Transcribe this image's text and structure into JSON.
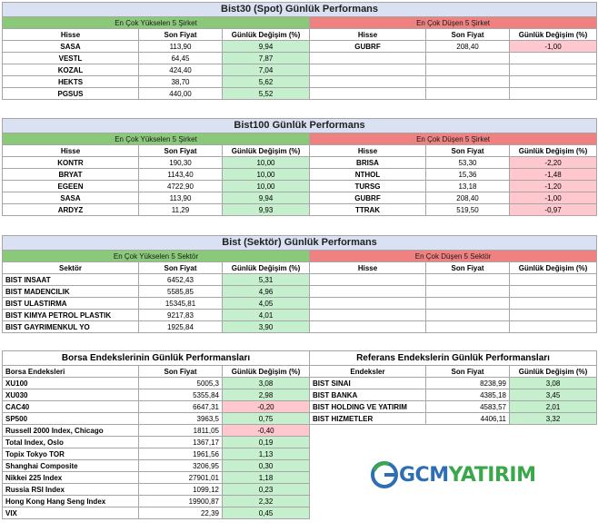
{
  "bist30": {
    "title": "Bist30 (Spot) Günlük Performans",
    "up_label": "En Çok Yükselen 5 Şirket",
    "down_label": "En Çok Düşen 5 Şirket",
    "col_hisse": "Hisse",
    "col_fiyat": "Son Fiyat",
    "col_degisim": "Günlük Değişim (%)",
    "up": [
      {
        "name": "SASA",
        "price": "113,90",
        "change": "9,94"
      },
      {
        "name": "VESTL",
        "price": "64,45",
        "change": "7,87"
      },
      {
        "name": "KOZAL",
        "price": "424,40",
        "change": "7,04"
      },
      {
        "name": "HEKTS",
        "price": "38,70",
        "change": "5,62"
      },
      {
        "name": "PGSUS",
        "price": "440,00",
        "change": "5,52"
      }
    ],
    "down": [
      {
        "name": "GUBRF",
        "price": "208,40",
        "change": "-1,00"
      }
    ]
  },
  "bist100": {
    "title": "Bist100 Günlük Performans",
    "up_label": "En Çok Yükselen 5 Şirket",
    "down_label": "En Çok Düşen 5 Şirket",
    "col_hisse": "Hisse",
    "col_fiyat": "Son Fiyat",
    "col_degisim": "Günlük Değişim (%)",
    "up": [
      {
        "name": "KONTR",
        "price": "190,30",
        "change": "10,00"
      },
      {
        "name": "BRYAT",
        "price": "1143,40",
        "change": "10,00"
      },
      {
        "name": "EGEEN",
        "price": "4722,90",
        "change": "10,00"
      },
      {
        "name": "SASA",
        "price": "113,90",
        "change": "9,94"
      },
      {
        "name": "ARDYZ",
        "price": "11,29",
        "change": "9,93"
      }
    ],
    "down": [
      {
        "name": "BRISA",
        "price": "53,30",
        "change": "-2,20"
      },
      {
        "name": "NTHOL",
        "price": "15,36",
        "change": "-1,48"
      },
      {
        "name": "TURSG",
        "price": "13,18",
        "change": "-1,20"
      },
      {
        "name": "GUBRF",
        "price": "208,40",
        "change": "-1,00"
      },
      {
        "name": "TTRAK",
        "price": "519,50",
        "change": "-0,97"
      }
    ]
  },
  "sektor": {
    "title": "Bist (Sektör) Günlük Performans",
    "up_label": "En Çok Yükselen 5 Sektör",
    "down_label": "En Çok Düşen 5 Sektör",
    "col_sektor": "Sektör",
    "col_hisse": "Hisse",
    "col_fiyat": "Son Fiyat",
    "col_degisim": "Günlük Değişim (%)",
    "up": [
      {
        "name": "BIST INSAAT",
        "price": "6452,43",
        "change": "5,31"
      },
      {
        "name": "BIST MADENCILIK",
        "price": "5585,85",
        "change": "4,96"
      },
      {
        "name": "BIST ULASTIRMA",
        "price": "15345,81",
        "change": "4,05"
      },
      {
        "name": "BIST KIMYA PETROL PLASTIK",
        "price": "9217,83",
        "change": "4,01"
      },
      {
        "name": "BIST GAYRIMENKUL YO",
        "price": "1925,84",
        "change": "3,90"
      }
    ]
  },
  "borsa": {
    "title": "Borsa Endekslerinin Günlük Performansları",
    "col_name": "Borsa Endeksleri",
    "col_fiyat": "Son Fiyat",
    "col_degisim": "Günlük Değişim (%)",
    "rows": [
      {
        "name": "XU100",
        "price": "5005,3",
        "change": "3,08",
        "neg": false
      },
      {
        "name": "XU030",
        "price": "5355,84",
        "change": "2,98",
        "neg": false
      },
      {
        "name": "CAC40",
        "price": "6647,31",
        "change": "-0,20",
        "neg": true
      },
      {
        "name": "SP500",
        "price": "3963,5",
        "change": "0,75",
        "neg": false
      },
      {
        "name": "Russell 2000 Index, Chicago",
        "price": "1811,05",
        "change": "-0,40",
        "neg": true
      },
      {
        "name": "Total Index, Oslo",
        "price": "1367,17",
        "change": "0,19",
        "neg": false
      },
      {
        "name": "Topix Tokyo TOR",
        "price": "1961,56",
        "change": "1,13",
        "neg": false
      },
      {
        "name": "Shanghai Composite",
        "price": "3206,95",
        "change": "0,30",
        "neg": false
      },
      {
        "name": "Nikkei 225 Index",
        "price": "27901,01",
        "change": "1,18",
        "neg": false
      },
      {
        "name": "Russia RSI Index",
        "price": "1099,12",
        "change": "0,23",
        "neg": false
      },
      {
        "name": "Hong Kong Hang Seng Index",
        "price": "19900,87",
        "change": "2,32",
        "neg": false
      },
      {
        "name": "VIX",
        "price": "22,39",
        "change": "0,45",
        "neg": false
      }
    ]
  },
  "referans": {
    "title": "Referans Endekslerin  Günlük Performansları",
    "col_name": "Endeksler",
    "col_fiyat": "Son Fiyat",
    "col_degisim": "Günlük Değişim (%)",
    "rows": [
      {
        "name": "BIST SINAI",
        "price": "8238,99",
        "change": "3,08"
      },
      {
        "name": "BIST BANKA",
        "price": "4385,18",
        "change": "3,45"
      },
      {
        "name": "BIST HOLDING VE YATIRIM",
        "price": "4583,57",
        "change": "2,01"
      },
      {
        "name": "BIST HIZMETLER",
        "price": "4406,11",
        "change": "3,32"
      }
    ]
  },
  "logo": {
    "text_gcm": "GCM",
    "text_yatirim": "YATIRIM",
    "color_blue": "#2e6eb5",
    "color_green": "#3aa84a"
  }
}
